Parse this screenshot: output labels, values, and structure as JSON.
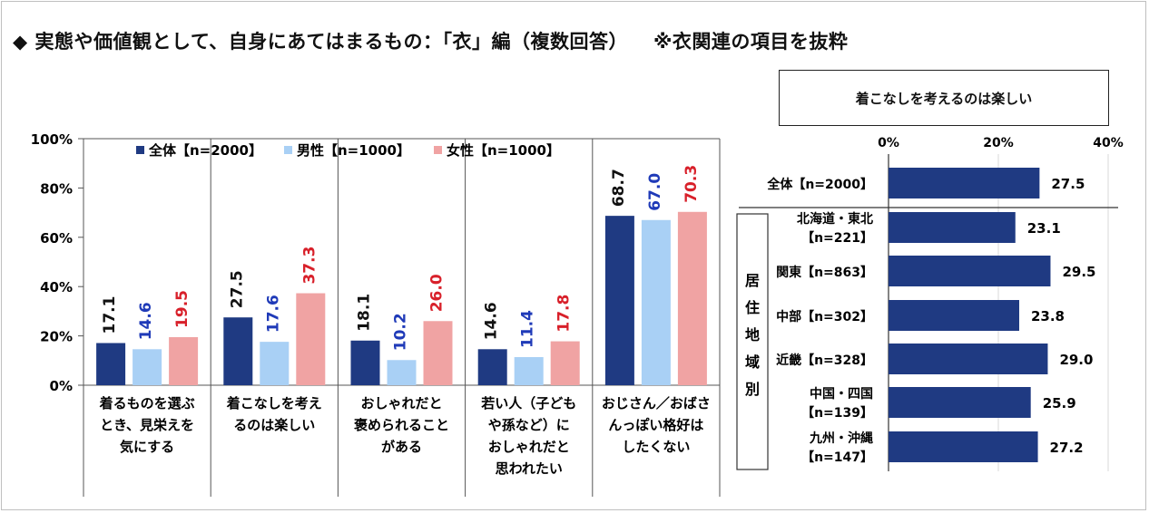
{
  "title": {
    "main": "◆ 実態や価値観として、自身にあてはまるもの：「衣」編（複数回答）",
    "note": "※衣関連の項目を抜粋"
  },
  "chart_data": [
    {
      "type": "bar",
      "categories": [
        [
          "着るものを選ぶ",
          "とき、見栄えを",
          "気にする"
        ],
        [
          "着こなしを考え",
          "るのは楽しい"
        ],
        [
          "おしゃれだと",
          "褒められること",
          "がある"
        ],
        [
          "若い人（子ども",
          "や孫など）に",
          "おしゃれだと",
          "思われたい"
        ],
        [
          "おじさん／おばさ",
          "んっぽい格好は",
          "したくない"
        ]
      ],
      "series": [
        {
          "name": "全体【n=2000】",
          "values": [
            17.1,
            27.5,
            18.1,
            14.6,
            68.7
          ]
        },
        {
          "name": "男性【n=1000】",
          "values": [
            14.6,
            17.6,
            10.2,
            11.4,
            67.0
          ]
        },
        {
          "name": "女性【n=1000】",
          "values": [
            19.5,
            37.3,
            26.0,
            17.8,
            70.3
          ]
        }
      ],
      "yticks": [
        "0%",
        "20%",
        "40%",
        "60%",
        "80%",
        "100%"
      ],
      "ylim": [
        0,
        100
      ],
      "colors": {
        "bar": [
          "#1f3a82",
          "#a9d0f5",
          "#f0a3a3"
        ],
        "label": [
          "#111111",
          "#1f3ab8",
          "#d8202a"
        ]
      },
      "legend": "top"
    },
    {
      "type": "bar",
      "orientation": "horizontal",
      "title": "着こなしを考えるのは楽しい",
      "group_label": [
        "居",
        "住",
        "地",
        "域",
        "別"
      ],
      "categories": [
        [
          "全体【n=2000】"
        ],
        [
          "北海道・東北",
          "【n=221】"
        ],
        [
          "関東【n=863】"
        ],
        [
          "中部【n=302】"
        ],
        [
          "近畿【n=328】"
        ],
        [
          "中国・四国",
          "【n=139】"
        ],
        [
          "九州・沖縄",
          "【n=147】"
        ]
      ],
      "values": [
        27.5,
        23.1,
        29.5,
        23.8,
        29.0,
        25.9,
        27.2
      ],
      "value_labels": [
        "27.5",
        "23.1",
        "29.5",
        "23.8",
        "29.0",
        "25.9",
        "27.2"
      ],
      "xticks": [
        "0%",
        "20%",
        "40%"
      ],
      "xlim": [
        0,
        40
      ],
      "colors": {
        "bar": "#1f3a82"
      }
    }
  ]
}
